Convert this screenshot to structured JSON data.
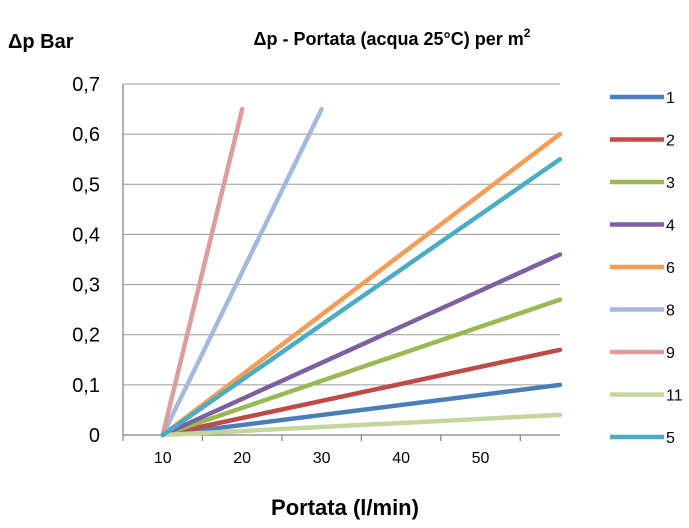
{
  "chart_data": {
    "type": "line",
    "title_main": "Δp - Portata (acqua 25°C) per m",
    "title_sup": "2",
    "ylabel": "Δp Bar",
    "xlabel": "Portata (l/min)",
    "ylim": [
      0,
      0.7
    ],
    "xlim": [
      5,
      60
    ],
    "yticks": [
      {
        "value": 0,
        "label": "0"
      },
      {
        "value": 0.1,
        "label": "0,1"
      },
      {
        "value": 0.2,
        "label": "0,2"
      },
      {
        "value": 0.3,
        "label": "0,3"
      },
      {
        "value": 0.4,
        "label": "0,4"
      },
      {
        "value": 0.5,
        "label": "0,5"
      },
      {
        "value": 0.6,
        "label": "0,6"
      },
      {
        "value": 0.7,
        "label": "0,7"
      }
    ],
    "xticks": [
      {
        "value": 10,
        "label": "10"
      },
      {
        "value": 20,
        "label": "20"
      },
      {
        "value": 30,
        "label": "30"
      },
      {
        "value": 40,
        "label": "40"
      },
      {
        "value": 50,
        "label": "50"
      }
    ],
    "grid": true,
    "legend_position": "right",
    "series": [
      {
        "name": "1",
        "color": "#4a7ebb",
        "points": [
          [
            10,
            0
          ],
          [
            60,
            0.1
          ]
        ]
      },
      {
        "name": "2",
        "color": "#be4b48",
        "points": [
          [
            10,
            0
          ],
          [
            60,
            0.17
          ]
        ]
      },
      {
        "name": "3",
        "color": "#98b954",
        "points": [
          [
            10,
            0
          ],
          [
            60,
            0.27
          ]
        ]
      },
      {
        "name": "4",
        "color": "#7d60a0",
        "points": [
          [
            10,
            0
          ],
          [
            60,
            0.36
          ]
        ]
      },
      {
        "name": "6",
        "color": "#f59d56",
        "points": [
          [
            10,
            0
          ],
          [
            60,
            0.6
          ]
        ]
      },
      {
        "name": "8",
        "color": "#a5b9de",
        "points": [
          [
            10,
            0
          ],
          [
            30,
            0.65
          ]
        ]
      },
      {
        "name": "9",
        "color": "#dc9d9c",
        "points": [
          [
            10,
            0
          ],
          [
            20,
            0.65
          ]
        ]
      },
      {
        "name": "11",
        "color": "#c3d69b",
        "points": [
          [
            10,
            0
          ],
          [
            60,
            0.04
          ]
        ]
      },
      {
        "name": "5",
        "color": "#4bacc6",
        "points": [
          [
            10,
            0
          ],
          [
            60,
            0.55
          ]
        ]
      }
    ]
  }
}
